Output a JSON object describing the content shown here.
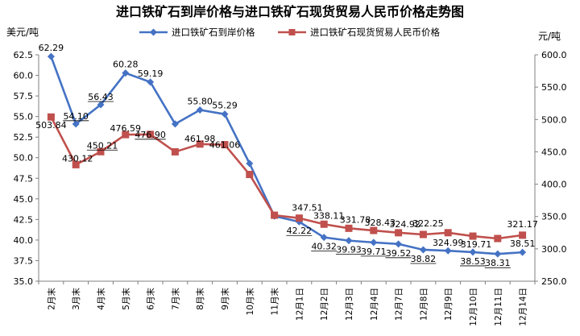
{
  "chart_data": {
    "type": "line",
    "title": "进口铁矿石到岸价格与进口铁矿石现货贸易人民币价格走势图",
    "y_left_unit": "美元/吨",
    "y_right_unit": "元/吨",
    "categories": [
      "2月末",
      "3月末",
      "4月末",
      "5月末",
      "6月末",
      "7月末",
      "8月末",
      "9月末",
      "10月末",
      "11月末",
      "12月1日",
      "12月2日",
      "12月3日",
      "12月4日",
      "12月7日",
      "12月8日",
      "12月9日",
      "12月10日",
      "12月11日",
      "12月14日"
    ],
    "y_left": {
      "min": 35.0,
      "max": 62.5,
      "step": 2.5,
      "ticks": [
        "35.0",
        "37.5",
        "40.0",
        "42.5",
        "45.0",
        "47.5",
        "50.0",
        "52.5",
        "55.0",
        "57.5",
        "60.0",
        "62.5"
      ]
    },
    "y_right": {
      "min": 250.0,
      "max": 600.0,
      "step": 50,
      "ticks": [
        "250.0",
        "300.0",
        "350.0",
        "400.0",
        "450.0",
        "500.0",
        "550.0",
        "600.0"
      ]
    },
    "legend_position": "top",
    "grid": false,
    "series": [
      {
        "name": "进口铁矿石到岸价格",
        "axis": "left",
        "color": "#4472C4",
        "marker": "diamond",
        "values": [
          62.29,
          54.1,
          56.43,
          60.28,
          59.19,
          54.1,
          55.8,
          55.29,
          49.3,
          42.9,
          42.22,
          40.32,
          39.93,
          39.71,
          39.52,
          38.82,
          38.7,
          38.53,
          38.31,
          38.51
        ],
        "labels": [
          "62.29",
          "54.10",
          "56.43",
          "60.28",
          "59.19",
          "",
          "55.80",
          "55.29",
          "",
          "",
          "42.22",
          "40.32",
          "39.93",
          "39.71",
          "39.52",
          "38.82",
          "",
          "38.53",
          "38.31",
          "38.51"
        ]
      },
      {
        "name": "进口铁矿石现货贸易人民币价格",
        "axis": "right",
        "color": "#C0504D",
        "marker": "square",
        "values": [
          503.84,
          430.12,
          450.21,
          476.59,
          476.9,
          450.0,
          461.98,
          461.06,
          415.0,
          352.0,
          347.51,
          338.11,
          331.78,
          328.43,
          324.92,
          322.25,
          324.99,
          319.71,
          316.0,
          321.17
        ],
        "labels": [
          "503.84",
          "430.12",
          "450.21",
          "476.59",
          "476.90",
          "",
          "461.98",
          "461.06",
          "",
          "",
          "347.51",
          "338.11",
          "331.78",
          "328.43",
          "324.92",
          "322.25",
          "324.99",
          "319.71",
          "",
          "321.17"
        ]
      }
    ]
  }
}
